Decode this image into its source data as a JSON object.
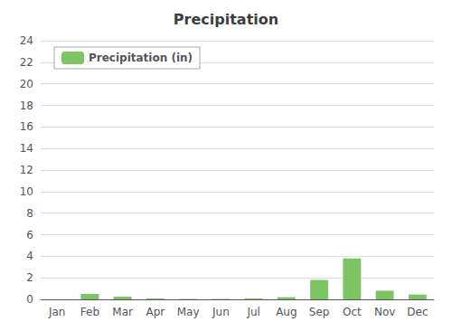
{
  "chart_data": {
    "type": "bar",
    "title": "Precipitation",
    "categories": [
      "Jan",
      "Feb",
      "Mar",
      "Apr",
      "May",
      "Jun",
      "Jul",
      "Aug",
      "Sep",
      "Oct",
      "Nov",
      "Dec"
    ],
    "series": [
      {
        "name": "Precipitation (in)",
        "color": "#7dc462",
        "values": [
          0.0,
          0.5,
          0.25,
          0.08,
          0.04,
          0.04,
          0.08,
          0.2,
          1.8,
          3.8,
          0.8,
          0.45
        ]
      }
    ],
    "ylim": [
      0,
      24
    ],
    "yticks": [
      0,
      2,
      4,
      6,
      8,
      10,
      12,
      14,
      16,
      18,
      20,
      22,
      24
    ],
    "grid": true,
    "legend": "upper left"
  }
}
